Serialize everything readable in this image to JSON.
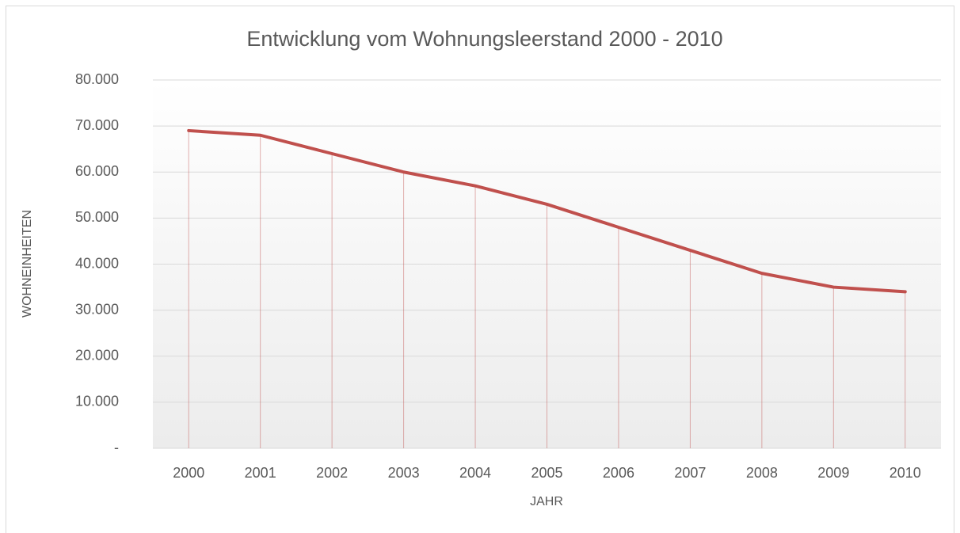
{
  "chart_data": {
    "type": "line",
    "title": "Entwicklung vom Wohnungsleerstand 2000 - 2010",
    "x_label": "JAHR",
    "y_label": "WOHNEINHEITEN",
    "categories": [
      "2000",
      "2001",
      "2002",
      "2003",
      "2004",
      "2005",
      "2006",
      "2007",
      "2008",
      "2009",
      "2010"
    ],
    "values": [
      69000,
      68000,
      64000,
      60000,
      57000,
      53000,
      48000,
      43000,
      38000,
      35000,
      34000
    ],
    "color": "#c0504d",
    "drop_lines": true,
    "grid": true,
    "ylim": [
      0,
      80000
    ],
    "yticks": [
      {
        "value": 0,
        "label": "-"
      },
      {
        "value": 10000,
        "label": "10.000"
      },
      {
        "value": 20000,
        "label": "20.000"
      },
      {
        "value": 30000,
        "label": "30.000"
      },
      {
        "value": 40000,
        "label": "40.000"
      },
      {
        "value": 50000,
        "label": "50.000"
      },
      {
        "value": 60000,
        "label": "60.000"
      },
      {
        "value": 70000,
        "label": "70.000"
      },
      {
        "value": 80000,
        "label": "80.000"
      }
    ]
  }
}
